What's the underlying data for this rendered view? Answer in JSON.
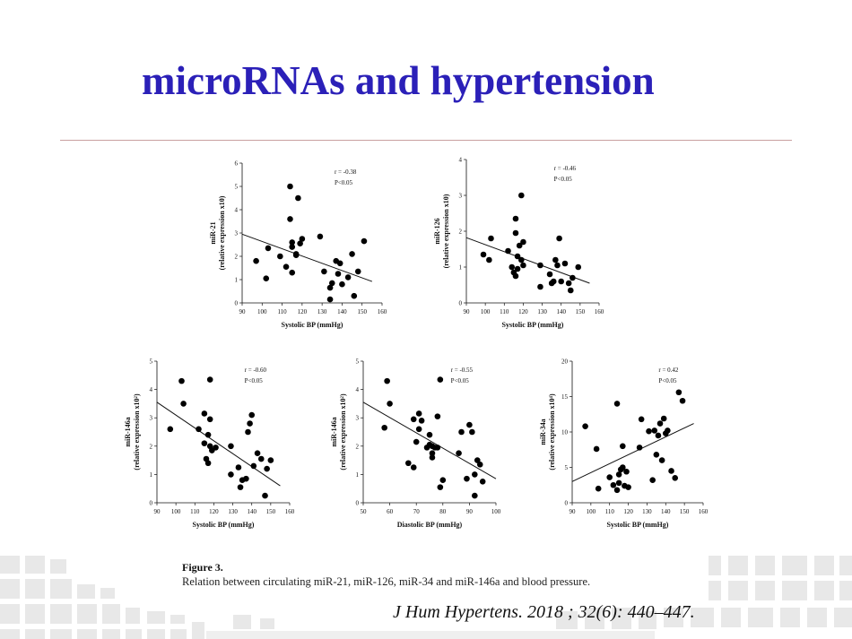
{
  "slide": {
    "title": "microRNAs and hypertension",
    "caption_label": "Figure 3.",
    "caption_text": "Relation between circulating miR-21, miR-126, miR-34 and miR-146a and blood pressure.",
    "citation": "J Hum Hypertens. 2018 ; 32(6): 440–447."
  },
  "colors": {
    "title": "#2b20b8",
    "points": "#000000",
    "rule": "#c9a0a0",
    "decoration": "#e6e6e6"
  },
  "chart_data": [
    {
      "type": "scatter",
      "ylabel_line1": "miR-21",
      "ylabel_line2": "(relative expression x10)",
      "xlabel": "Systolic BP (mmHg)",
      "annotation_r": "r = -0.38",
      "annotation_p": "P<0.05",
      "xlim": [
        90,
        160
      ],
      "ylim": [
        0,
        6
      ],
      "xticks": [
        90,
        100,
        110,
        120,
        130,
        140,
        150,
        160
      ],
      "yticks": [
        0,
        1,
        2,
        3,
        4,
        5,
        6
      ],
      "trendline": [
        [
          90,
          2.95
        ],
        [
          155,
          0.92
        ]
      ],
      "points": [
        [
          97,
          1.8
        ],
        [
          102,
          1.05
        ],
        [
          103,
          2.35
        ],
        [
          109,
          2.0
        ],
        [
          112,
          1.55
        ],
        [
          114,
          3.6
        ],
        [
          114,
          5.0
        ],
        [
          115,
          2.6
        ],
        [
          115,
          1.3
        ],
        [
          115,
          2.4
        ],
        [
          117,
          2.1
        ],
        [
          117,
          2.05
        ],
        [
          118,
          4.5
        ],
        [
          119,
          2.55
        ],
        [
          120,
          2.75
        ],
        [
          129,
          2.85
        ],
        [
          131,
          1.35
        ],
        [
          134,
          0.65
        ],
        [
          134,
          0.15
        ],
        [
          135,
          0.85
        ],
        [
          137,
          1.8
        ],
        [
          138,
          1.25
        ],
        [
          139,
          1.7
        ],
        [
          140,
          0.8
        ],
        [
          143,
          1.1
        ],
        [
          145,
          2.1
        ],
        [
          146,
          0.3
        ],
        [
          148,
          1.35
        ],
        [
          151,
          2.65
        ]
      ]
    },
    {
      "type": "scatter",
      "ylabel_line1": "miR-126",
      "ylabel_line2": "(relative expression x10)",
      "xlabel": "Systolic BP (mmHg)",
      "annotation_r": "r = -0.46",
      "annotation_p": "P<0.05",
      "xlim": [
        90,
        160
      ],
      "ylim": [
        0,
        4
      ],
      "xticks": [
        90,
        100,
        110,
        120,
        130,
        140,
        150,
        160
      ],
      "yticks": [
        0,
        1,
        2,
        3,
        4
      ],
      "trendline": [
        [
          90,
          1.82
        ],
        [
          155,
          0.55
        ]
      ],
      "points": [
        [
          99,
          1.35
        ],
        [
          102,
          1.2
        ],
        [
          103,
          1.8
        ],
        [
          112,
          1.45
        ],
        [
          114,
          1.0
        ],
        [
          115,
          0.85
        ],
        [
          116,
          1.95
        ],
        [
          116,
          2.35
        ],
        [
          116,
          0.75
        ],
        [
          117,
          1.3
        ],
        [
          117,
          0.95
        ],
        [
          118,
          1.6
        ],
        [
          119,
          3.0
        ],
        [
          119,
          1.2
        ],
        [
          120,
          1.7
        ],
        [
          120,
          1.05
        ],
        [
          129,
          0.45
        ],
        [
          129,
          1.05
        ],
        [
          134,
          0.8
        ],
        [
          135,
          0.55
        ],
        [
          136,
          0.6
        ],
        [
          137,
          1.2
        ],
        [
          138,
          1.05
        ],
        [
          139,
          1.8
        ],
        [
          140,
          0.6
        ],
        [
          142,
          1.1
        ],
        [
          144,
          0.55
        ],
        [
          145,
          0.35
        ],
        [
          146,
          0.7
        ],
        [
          149,
          1.0
        ]
      ]
    },
    {
      "type": "scatter",
      "ylabel_line1": "miR-146a",
      "ylabel_line2": "(relative expression x10²)",
      "xlabel": "Systolic BP (mmHg)",
      "annotation_r": "r = -0.60",
      "annotation_p": "P<0.05",
      "xlim": [
        90,
        160
      ],
      "ylim": [
        0,
        5
      ],
      "xticks": [
        90,
        100,
        110,
        120,
        130,
        140,
        150,
        160
      ],
      "yticks": [
        0,
        1,
        2,
        3,
        4,
        5
      ],
      "trendline": [
        [
          90,
          3.55
        ],
        [
          155,
          0.6
        ]
      ],
      "points": [
        [
          97,
          2.6
        ],
        [
          103,
          4.3
        ],
        [
          104,
          3.5
        ],
        [
          112,
          2.6
        ],
        [
          115,
          3.15
        ],
        [
          115,
          2.1
        ],
        [
          116,
          1.55
        ],
        [
          117,
          1.4
        ],
        [
          117,
          2.4
        ],
        [
          118,
          2.0
        ],
        [
          118,
          4.35
        ],
        [
          118,
          2.95
        ],
        [
          119,
          1.85
        ],
        [
          121,
          1.95
        ],
        [
          129,
          2.0
        ],
        [
          129,
          1.0
        ],
        [
          133,
          1.25
        ],
        [
          134,
          0.55
        ],
        [
          135,
          0.8
        ],
        [
          137,
          0.85
        ],
        [
          138,
          2.5
        ],
        [
          139,
          2.8
        ],
        [
          140,
          3.1
        ],
        [
          141,
          1.3
        ],
        [
          143,
          1.75
        ],
        [
          145,
          1.55
        ],
        [
          147,
          0.25
        ],
        [
          148,
          1.2
        ],
        [
          150,
          1.5
        ]
      ]
    },
    {
      "type": "scatter",
      "ylabel_line1": "miR-146a",
      "ylabel_line2": "(relative expression x10²)",
      "xlabel": "Diastolic BP (mmHg)",
      "annotation_r": "r = -0.55",
      "annotation_p": "P<0.05",
      "xlim": [
        50,
        100
      ],
      "ylim": [
        0,
        5
      ],
      "xticks": [
        50,
        60,
        70,
        80,
        90,
        100
      ],
      "yticks": [
        0,
        1,
        2,
        3,
        4,
        5
      ],
      "trendline": [
        [
          50,
          3.55
        ],
        [
          100,
          0.85
        ]
      ],
      "points": [
        [
          58,
          2.65
        ],
        [
          59,
          4.3
        ],
        [
          60,
          3.5
        ],
        [
          67,
          1.4
        ],
        [
          69,
          1.25
        ],
        [
          69,
          2.95
        ],
        [
          70,
          2.15
        ],
        [
          71,
          3.15
        ],
        [
          71,
          2.6
        ],
        [
          72,
          2.9
        ],
        [
          74,
          1.95
        ],
        [
          75,
          2.05
        ],
        [
          75,
          2.4
        ],
        [
          76,
          1.6
        ],
        [
          76,
          1.75
        ],
        [
          76,
          2.0
        ],
        [
          77,
          1.95
        ],
        [
          78,
          3.05
        ],
        [
          78,
          1.95
        ],
        [
          79,
          0.55
        ],
        [
          79,
          4.35
        ],
        [
          80,
          0.8
        ],
        [
          86,
          1.75
        ],
        [
          87,
          2.5
        ],
        [
          89,
          0.85
        ],
        [
          90,
          2.75
        ],
        [
          91,
          2.5
        ],
        [
          92,
          1.0
        ],
        [
          92,
          0.25
        ],
        [
          93,
          1.5
        ],
        [
          94,
          1.35
        ],
        [
          95,
          0.75
        ]
      ]
    },
    {
      "type": "scatter",
      "ylabel_line1": "miR-34a",
      "ylabel_line2": "(relative expression x10⁴)",
      "xlabel": "Systolic BP (mmHg)",
      "annotation_r": "r = 0.42",
      "annotation_p": "P<0.05",
      "xlim": [
        90,
        160
      ],
      "ylim": [
        0,
        20
      ],
      "xticks": [
        90,
        100,
        110,
        120,
        130,
        140,
        150,
        160
      ],
      "yticks": [
        0,
        5,
        10,
        15,
        20
      ],
      "trendline": [
        [
          90,
          3.0
        ],
        [
          155,
          11.2
        ]
      ],
      "points": [
        [
          97,
          10.8
        ],
        [
          103,
          7.6
        ],
        [
          104,
          2.0
        ],
        [
          110,
          3.6
        ],
        [
          112,
          2.5
        ],
        [
          114,
          14.0
        ],
        [
          114,
          1.8
        ],
        [
          115,
          2.8
        ],
        [
          115,
          4.0
        ],
        [
          116,
          4.7
        ],
        [
          117,
          8.0
        ],
        [
          117,
          5.0
        ],
        [
          118,
          2.4
        ],
        [
          119,
          4.4
        ],
        [
          120,
          2.2
        ],
        [
          126,
          7.8
        ],
        [
          127,
          11.8
        ],
        [
          131,
          10.1
        ],
        [
          133,
          3.2
        ],
        [
          134,
          10.2
        ],
        [
          135,
          6.8
        ],
        [
          136,
          9.5
        ],
        [
          137,
          11.2
        ],
        [
          138,
          6.0
        ],
        [
          139,
          11.9
        ],
        [
          140,
          9.8
        ],
        [
          141,
          10.2
        ],
        [
          143,
          4.5
        ],
        [
          145,
          3.5
        ],
        [
          147,
          15.6
        ],
        [
          149,
          14.4
        ]
      ]
    }
  ]
}
